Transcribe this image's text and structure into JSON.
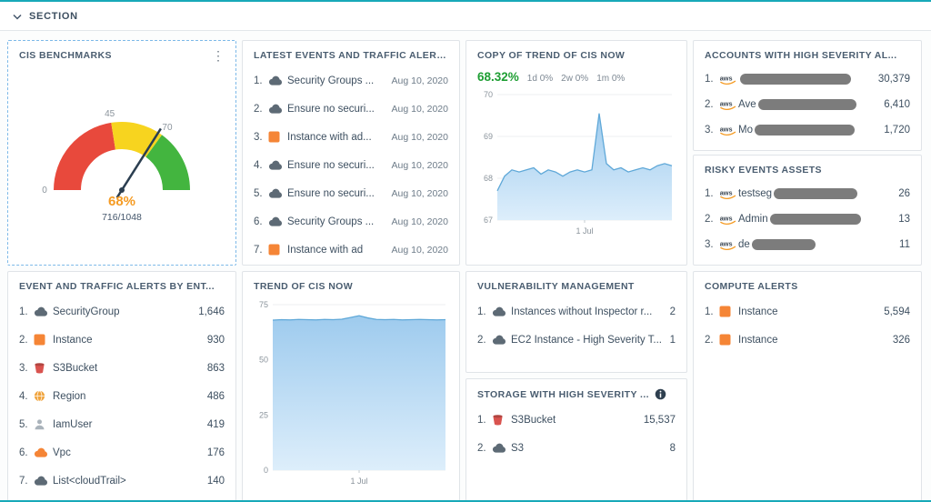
{
  "section_bar": {
    "label": "SECTION"
  },
  "widgets": {
    "cis": {
      "title": "CIS BENCHMARKS"
    },
    "latest": {
      "title": "LATEST EVENTS AND TRAFFIC ALERTS",
      "items": [
        {
          "index": "1.",
          "icon": "cloud",
          "text": "Security Groups ...",
          "date": "Aug 10, 2020"
        },
        {
          "index": "2.",
          "icon": "cloud",
          "text": "Ensure no securi...",
          "date": "Aug 10, 2020"
        },
        {
          "index": "3.",
          "icon": "instance",
          "text": "Instance with ad...",
          "date": "Aug 10, 2020"
        },
        {
          "index": "4.",
          "icon": "cloud",
          "text": "Ensure no securi...",
          "date": "Aug 10, 2020"
        },
        {
          "index": "5.",
          "icon": "cloud",
          "text": "Ensure no securi...",
          "date": "Aug 10, 2020"
        },
        {
          "index": "6.",
          "icon": "cloud",
          "text": "Security Groups ...",
          "date": "Aug 10, 2020"
        },
        {
          "index": "7.",
          "icon": "instance",
          "text": "Instance with ad",
          "date": "Aug 10, 2020"
        }
      ]
    },
    "copy_trend": {
      "title": "COPY OF TREND OF CIS NOW",
      "percent": "68.32%",
      "deltas": [
        {
          "period": "1d",
          "change": "0%"
        },
        {
          "period": "2w",
          "change": "0%"
        },
        {
          "period": "1m",
          "change": "0%"
        }
      ]
    },
    "accounts": {
      "title": "ACCOUNTS WITH HIGH SEVERITY AL...",
      "items": [
        {
          "index": "1.",
          "icon": "aws",
          "prefix": "",
          "redacted": true,
          "value": "30,379"
        },
        {
          "index": "2.",
          "icon": "aws",
          "prefix": "Ave",
          "redacted": true,
          "value": "6,410"
        },
        {
          "index": "3.",
          "icon": "aws",
          "prefix": "Mo",
          "redacted": true,
          "value": "1,720"
        }
      ]
    },
    "risky": {
      "title": "RISKY EVENTS ASSETS",
      "items": [
        {
          "index": "1.",
          "icon": "aws",
          "prefix": "testseg",
          "redacted": true,
          "value": "26"
        },
        {
          "index": "2.",
          "icon": "aws",
          "prefix": "Admin",
          "redacted": true,
          "value": "13"
        },
        {
          "index": "3.",
          "icon": "aws",
          "prefix": "de",
          "redacted": true,
          "value": "11"
        }
      ]
    },
    "by_entity": {
      "title": "EVENT AND TRAFFIC ALERTS BY ENT...",
      "items": [
        {
          "index": "1.",
          "icon": "cloud",
          "text": "SecurityGroup",
          "value": "1,646"
        },
        {
          "index": "2.",
          "icon": "instance",
          "text": "Instance",
          "value": "930"
        },
        {
          "index": "3.",
          "icon": "bucket",
          "text": "S3Bucket",
          "value": "863"
        },
        {
          "index": "4.",
          "icon": "region",
          "text": "Region",
          "value": "486"
        },
        {
          "index": "5.",
          "icon": "user",
          "text": "IamUser",
          "value": "419"
        },
        {
          "index": "6.",
          "icon": "vpc",
          "text": "Vpc",
          "value": "176"
        },
        {
          "index": "7.",
          "icon": "cloud",
          "text": "List<cloudTrail>",
          "value": "140"
        }
      ]
    },
    "trend": {
      "title": "TREND OF CIS NOW"
    },
    "vulnerability": {
      "title": "VULNERABILITY MANAGEMENT",
      "items": [
        {
          "index": "1.",
          "icon": "cloud",
          "text": "Instances without Inspector r...",
          "value": "2"
        },
        {
          "index": "2.",
          "icon": "cloud",
          "text": "EC2 Instance - High Severity T...",
          "value": "1"
        }
      ]
    },
    "storage": {
      "title": "STORAGE WITH HIGH SEVERITY ...",
      "items": [
        {
          "index": "1.",
          "icon": "bucket",
          "text": "S3Bucket",
          "value": "15,537"
        },
        {
          "index": "2.",
          "icon": "cloud",
          "text": "S3",
          "value": "8"
        }
      ]
    },
    "compute": {
      "title": "COMPUTE ALERTS",
      "items": [
        {
          "index": "1.",
          "icon": "instance",
          "text": "Instance",
          "value": "5,594"
        },
        {
          "index": "2.",
          "icon": "instance",
          "text": "Instance",
          "value": "326"
        }
      ]
    }
  },
  "chart_data": [
    {
      "id": "cis-gauge",
      "type": "gauge",
      "max": 100,
      "value": 68,
      "segments": [
        {
          "from": 0,
          "to": 45,
          "color": "#e8493c"
        },
        {
          "from": 45,
          "to": 70,
          "color": "#f7d41f"
        },
        {
          "from": 70,
          "to": 100,
          "color": "#43b53f"
        }
      ],
      "tick_values": [
        0,
        45,
        70
      ],
      "ticks": [
        "0",
        "45",
        "70"
      ],
      "center_label": "68%",
      "sub_label": "716/1048"
    },
    {
      "id": "copy-trend-area",
      "type": "area",
      "title": "COPY OF TREND OF CIS NOW",
      "values": [
        67.7,
        68.05,
        68.2,
        68.15,
        68.2,
        68.25,
        68.1,
        68.2,
        68.15,
        68.05,
        68.15,
        68.2,
        68.15,
        68.2,
        69.55,
        68.35,
        68.2,
        68.25,
        68.15,
        68.2,
        68.25,
        68.2,
        68.3,
        68.35,
        68.3
      ],
      "ylim": [
        67,
        70
      ],
      "yticks": [
        70,
        69,
        68,
        67
      ],
      "xtick_label": "1 Jul"
    },
    {
      "id": "trend-area",
      "type": "area",
      "title": "TREND OF CIS NOW",
      "values": [
        68,
        68.2,
        68.1,
        68.3,
        68.2,
        68.1,
        68.3,
        68.2,
        68.4,
        69.2,
        70,
        69,
        68.3,
        68.2,
        68.3,
        68.1,
        68.2,
        68.3,
        68.2,
        68.1,
        68.2
      ],
      "ylim": [
        0,
        75
      ],
      "yticks": [
        75,
        50,
        25,
        0
      ],
      "xtick_label": "1 Jul"
    }
  ]
}
